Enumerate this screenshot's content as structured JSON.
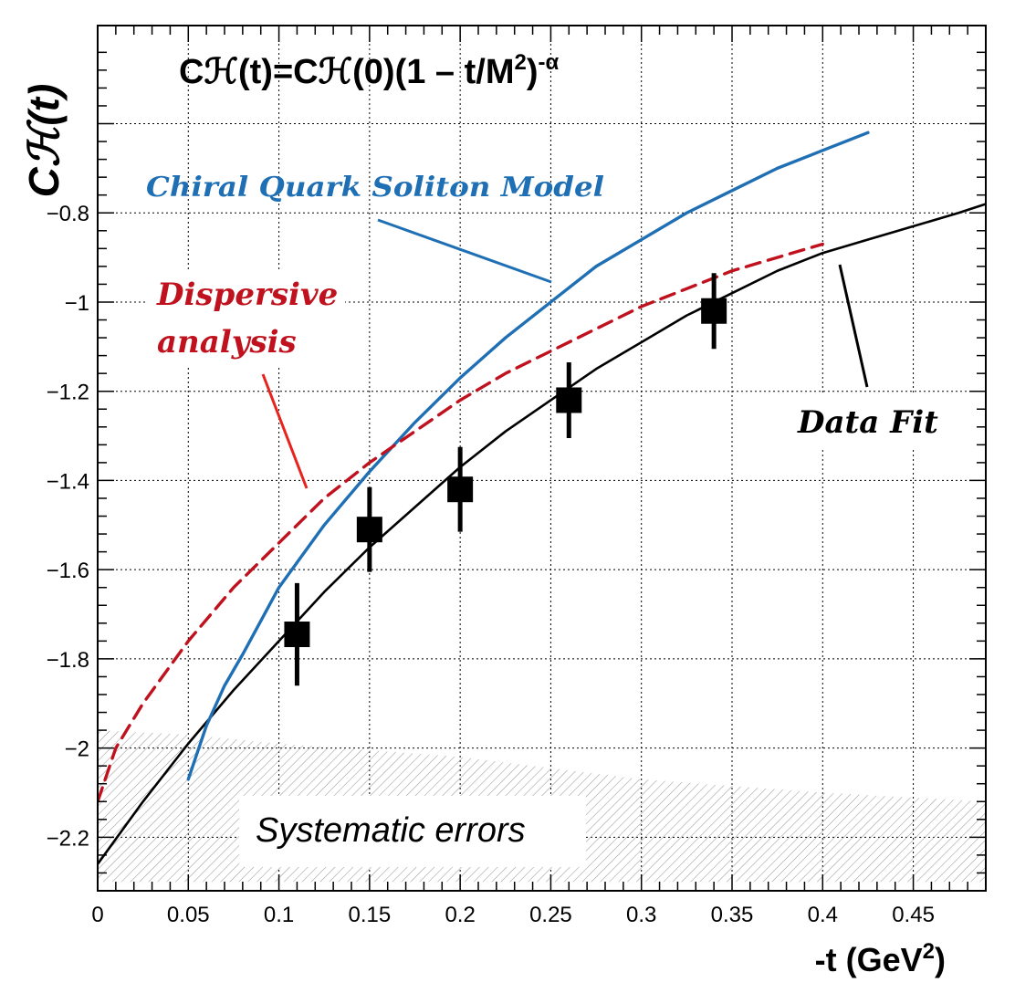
{
  "chart_data": {
    "type": "line",
    "title": "",
    "formula": {
      "lhs": "Cℋ(t)=Cℋ(0)(1 – t/M",
      "sup1": "2",
      "mid": ")",
      "sup2": "-α"
    },
    "xlabel": {
      "main": "-t (GeV",
      "sup": "2",
      "end": ")"
    },
    "ylabel": "Cℋ(t)",
    "xlim": [
      0,
      0.49
    ],
    "ylim": [
      -2.32,
      -0.38
    ],
    "grid": true,
    "x_ticks": [
      0,
      0.05,
      0.1,
      0.15,
      0.2,
      0.25,
      0.3,
      0.35,
      0.4,
      0.45
    ],
    "x_tick_labels": [
      "0",
      "0.05",
      "0.1",
      "0.15",
      "0.2",
      "0.25",
      "0.3",
      "0.35",
      "0.4",
      "0.45"
    ],
    "y_ticks": [
      -2.2,
      -2.0,
      -1.8,
      -1.6,
      -1.4,
      -1.2,
      -1.0,
      -0.8
    ],
    "y_tick_labels": [
      "−2.2",
      "−2",
      "−1.8",
      "−1.6",
      "−1.4",
      "−1.2",
      "−1",
      "−0.8"
    ],
    "series": [
      {
        "name": "Data Fit",
        "style": "solid",
        "color": "#000000",
        "x": [
          0.0,
          0.025,
          0.05,
          0.075,
          0.1,
          0.125,
          0.15,
          0.175,
          0.2,
          0.225,
          0.25,
          0.275,
          0.3,
          0.325,
          0.35,
          0.375,
          0.4,
          0.425,
          0.45,
          0.475,
          0.49
        ],
        "y": [
          -2.26,
          -2.12,
          -1.99,
          -1.87,
          -1.76,
          -1.65,
          -1.55,
          -1.46,
          -1.37,
          -1.29,
          -1.22,
          -1.15,
          -1.09,
          -1.03,
          -0.98,
          -0.93,
          -0.89,
          -0.86,
          -0.83,
          -0.8,
          -0.78
        ]
      },
      {
        "name": "Chiral Quark Soliton Model",
        "style": "solid",
        "color": "#1f6fb5",
        "x": [
          0.05,
          0.06,
          0.07,
          0.08,
          0.1,
          0.125,
          0.15,
          0.175,
          0.2,
          0.225,
          0.25,
          0.275,
          0.3,
          0.325,
          0.35,
          0.375,
          0.4,
          0.425
        ],
        "y": [
          -2.07,
          -1.95,
          -1.86,
          -1.79,
          -1.64,
          -1.5,
          -1.38,
          -1.27,
          -1.17,
          -1.08,
          -1.0,
          -0.92,
          -0.86,
          -0.8,
          -0.75,
          -0.7,
          -0.66,
          -0.62
        ]
      },
      {
        "name": "Dispersive analysis",
        "style": "dashed",
        "color": "#c0121e",
        "x": [
          0.0,
          0.01,
          0.025,
          0.05,
          0.075,
          0.1,
          0.125,
          0.15,
          0.175,
          0.2,
          0.225,
          0.25,
          0.275,
          0.3,
          0.325,
          0.35,
          0.375,
          0.4
        ],
        "y": [
          -2.12,
          -2.0,
          -1.9,
          -1.76,
          -1.64,
          -1.54,
          -1.44,
          -1.36,
          -1.29,
          -1.22,
          -1.16,
          -1.11,
          -1.06,
          -1.01,
          -0.97,
          -0.93,
          -0.9,
          -0.87
        ]
      }
    ],
    "points": {
      "name": "Data",
      "x": [
        0.11,
        0.15,
        0.2,
        0.26,
        0.34
      ],
      "y": [
        -1.745,
        -1.51,
        -1.42,
        -1.22,
        -1.02
      ],
      "yerr": [
        0.115,
        0.095,
        0.095,
        0.085,
        0.085
      ]
    },
    "systematic_band": {
      "label": "Systematic errors",
      "x": [
        0.0,
        0.05,
        0.1,
        0.2,
        0.3,
        0.4,
        0.49
      ],
      "upper": [
        -1.96,
        -1.97,
        -1.99,
        -2.02,
        -2.07,
        -2.1,
        -2.12
      ],
      "lower": -2.3
    },
    "annotations": {
      "cqsm": "Chiral Quark Soliton Model",
      "dispersive_1": "Dispersive",
      "dispersive_2": "analysis",
      "data_fit": "Data Fit",
      "systematic": "Systematic errors"
    },
    "colors": {
      "fit": "#000000",
      "cqsm": "#1f6fb5",
      "dispersive": "#c0121e",
      "dispersive_pointer": "#e8231d",
      "band_hatch": "#9a9a9a"
    }
  }
}
